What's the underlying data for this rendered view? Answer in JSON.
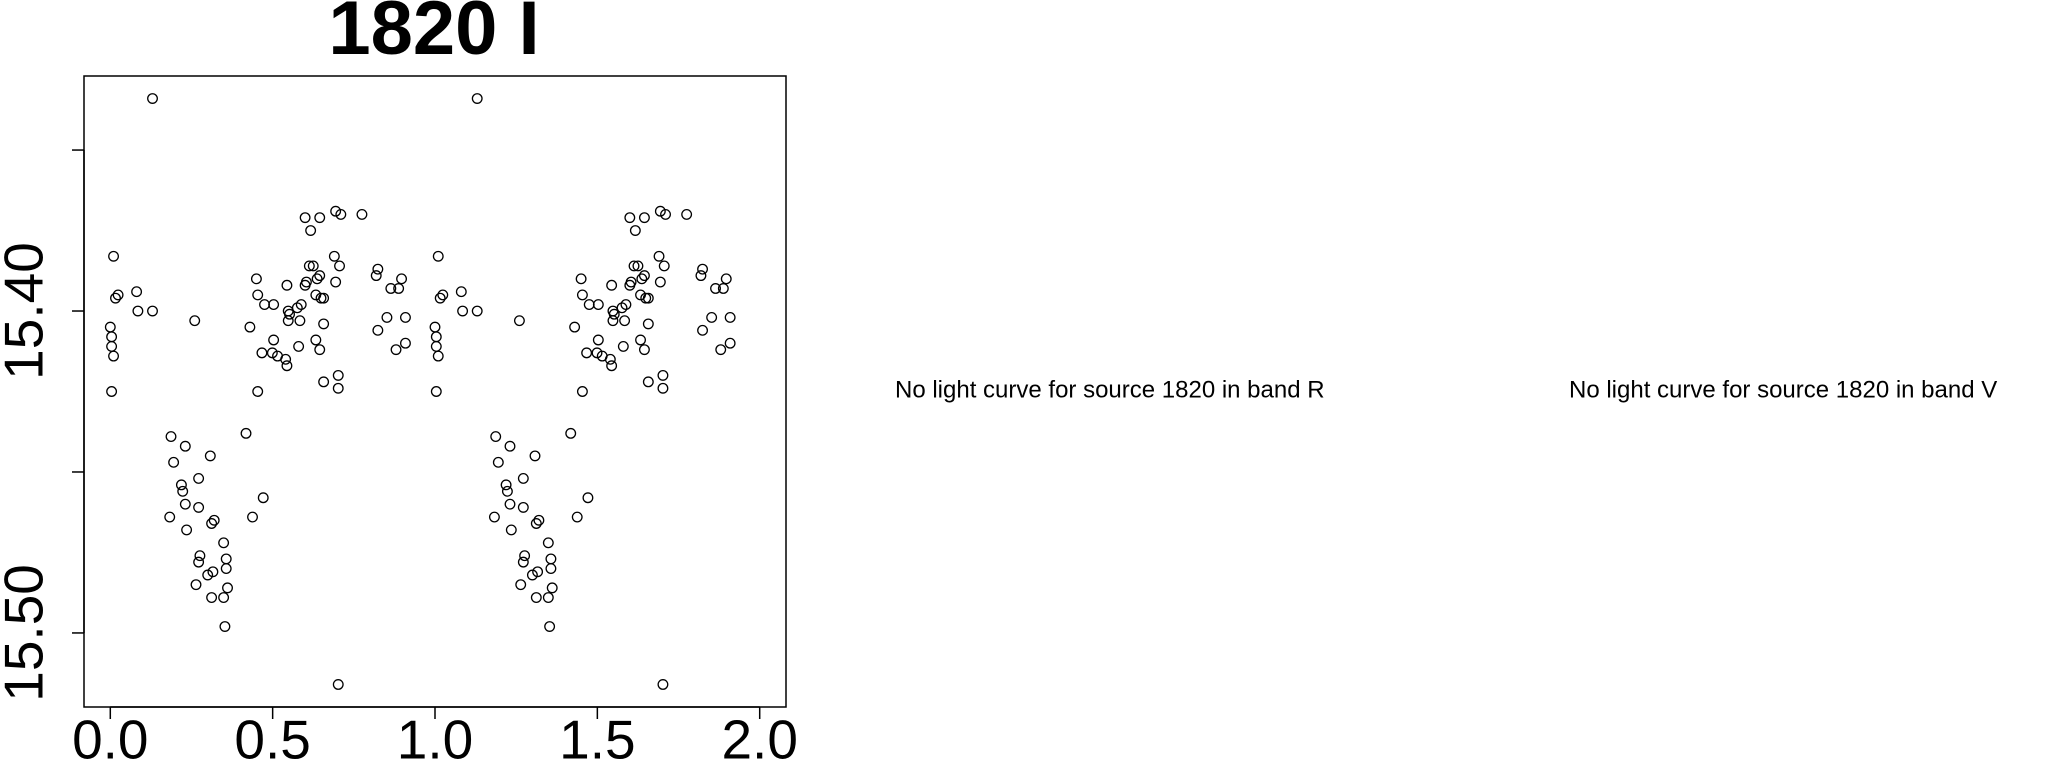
{
  "chart_data": {
    "type": "scatter",
    "title": "1820 I",
    "x": [
      0.13,
      0.0,
      0.004,
      0.004,
      0.01,
      0.004,
      0.01,
      0.016,
      0.024,
      0.081,
      0.085,
      0.13,
      0.26,
      0.187,
      0.195,
      0.231,
      0.219,
      0.223,
      0.231,
      0.183,
      0.235,
      0.272,
      0.272,
      0.308,
      0.276,
      0.272,
      0.264,
      0.312,
      0.32,
      0.3,
      0.316,
      0.312,
      0.349,
      0.357,
      0.357,
      0.349,
      0.361,
      0.353,
      0.418,
      0.43,
      0.438,
      0.454,
      0.471,
      0.45,
      0.454,
      0.475,
      0.503,
      0.467,
      0.499,
      0.503,
      0.515,
      0.544,
      0.548,
      0.552,
      0.548,
      0.54,
      0.544,
      0.576,
      0.588,
      0.584,
      0.58,
      0.6,
      0.617,
      0.604,
      0.613,
      0.6,
      0.625,
      0.645,
      0.645,
      0.637,
      0.633,
      0.649,
      0.657,
      0.633,
      0.645,
      0.657,
      0.657,
      0.694,
      0.71,
      0.69,
      0.706,
      0.694,
      0.702,
      0.702,
      0.775,
      0.702,
      0.819,
      0.824,
      0.824,
      0.852,
      0.864,
      0.88,
      0.888,
      0.897,
      0.909,
      0.909,
      1.13,
      1.0,
      1.004,
      1.004,
      1.01,
      1.004,
      1.01,
      1.016,
      1.024,
      1.081,
      1.085,
      1.13,
      1.26,
      1.187,
      1.195,
      1.231,
      1.219,
      1.223,
      1.231,
      1.183,
      1.235,
      1.272,
      1.272,
      1.308,
      1.276,
      1.272,
      1.264,
      1.312,
      1.32,
      1.3,
      1.316,
      1.312,
      1.349,
      1.357,
      1.357,
      1.349,
      1.361,
      1.353,
      1.418,
      1.43,
      1.438,
      1.454,
      1.471,
      1.45,
      1.454,
      1.475,
      1.503,
      1.467,
      1.499,
      1.503,
      1.515,
      1.544,
      1.548,
      1.552,
      1.548,
      1.54,
      1.544,
      1.576,
      1.588,
      1.584,
      1.58,
      1.6,
      1.617,
      1.604,
      1.613,
      1.6,
      1.625,
      1.645,
      1.645,
      1.637,
      1.633,
      1.649,
      1.657,
      1.633,
      1.645,
      1.657,
      1.657,
      1.694,
      1.71,
      1.69,
      1.706,
      1.694,
      1.702,
      1.702,
      1.775,
      1.702,
      1.819,
      1.824,
      1.824,
      1.852,
      1.864,
      1.88,
      1.888,
      1.897,
      1.909,
      1.909
    ],
    "y": [
      15.334,
      15.405,
      15.408,
      15.411,
      15.414,
      15.425,
      15.383,
      15.396,
      15.395,
      15.394,
      15.4,
      15.4,
      15.403,
      15.439,
      15.447,
      15.442,
      15.454,
      15.456,
      15.46,
      15.464,
      15.468,
      15.452,
      15.461,
      15.445,
      15.476,
      15.478,
      15.485,
      15.466,
      15.465,
      15.482,
      15.481,
      15.489,
      15.472,
      15.477,
      15.48,
      15.489,
      15.486,
      15.498,
      15.438,
      15.405,
      15.464,
      15.425,
      15.458,
      15.39,
      15.395,
      15.398,
      15.398,
      15.413,
      15.413,
      15.409,
      15.414,
      15.392,
      15.403,
      15.401,
      15.4,
      15.415,
      15.417,
      15.399,
      15.398,
      15.403,
      15.411,
      15.371,
      15.375,
      15.391,
      15.386,
      15.392,
      15.386,
      15.371,
      15.389,
      15.39,
      15.395,
      15.396,
      15.396,
      15.409,
      15.412,
      15.404,
      15.422,
      15.369,
      15.37,
      15.383,
      15.386,
      15.391,
      15.42,
      15.424,
      15.37,
      15.516,
      15.389,
      15.387,
      15.406,
      15.402,
      15.393,
      15.412,
      15.393,
      15.39,
      15.402,
      15.41,
      15.334,
      15.405,
      15.408,
      15.411,
      15.414,
      15.425,
      15.383,
      15.396,
      15.395,
      15.394,
      15.4,
      15.4,
      15.403,
      15.439,
      15.447,
      15.442,
      15.454,
      15.456,
      15.46,
      15.464,
      15.468,
      15.452,
      15.461,
      15.445,
      15.476,
      15.478,
      15.485,
      15.466,
      15.465,
      15.482,
      15.481,
      15.489,
      15.472,
      15.477,
      15.48,
      15.489,
      15.486,
      15.498,
      15.438,
      15.405,
      15.464,
      15.425,
      15.458,
      15.39,
      15.395,
      15.398,
      15.398,
      15.413,
      15.413,
      15.409,
      15.414,
      15.392,
      15.403,
      15.401,
      15.4,
      15.415,
      15.417,
      15.399,
      15.398,
      15.403,
      15.411,
      15.371,
      15.375,
      15.391,
      15.386,
      15.392,
      15.386,
      15.371,
      15.389,
      15.39,
      15.395,
      15.396,
      15.396,
      15.409,
      15.412,
      15.404,
      15.422,
      15.369,
      15.37,
      15.383,
      15.386,
      15.391,
      15.42,
      15.424,
      15.37,
      15.516,
      15.389,
      15.387,
      15.406,
      15.402,
      15.393,
      15.412,
      15.393,
      15.39,
      15.402,
      15.41
    ],
    "xlim": [
      -0.081,
      2.081
    ],
    "ylim": [
      15.523,
      15.327
    ],
    "xticks": [
      {
        "value": 0,
        "label": "0.0"
      },
      {
        "value": 0.5,
        "label": "0.5"
      },
      {
        "value": 1,
        "label": "1.0"
      },
      {
        "value": 1.5,
        "label": "1.5"
      },
      {
        "value": 2,
        "label": "2.0"
      }
    ],
    "yticks": [
      {
        "value": 15.4,
        "label": "15.40"
      },
      {
        "value": 15.5,
        "label": "15.50"
      }
    ],
    "minor_yticks": [
      15.35,
      15.45
    ],
    "color": "#000000"
  },
  "messages": [
    "No light curve for source 1820 in band R",
    "No light curve for source 1820 in band V"
  ]
}
